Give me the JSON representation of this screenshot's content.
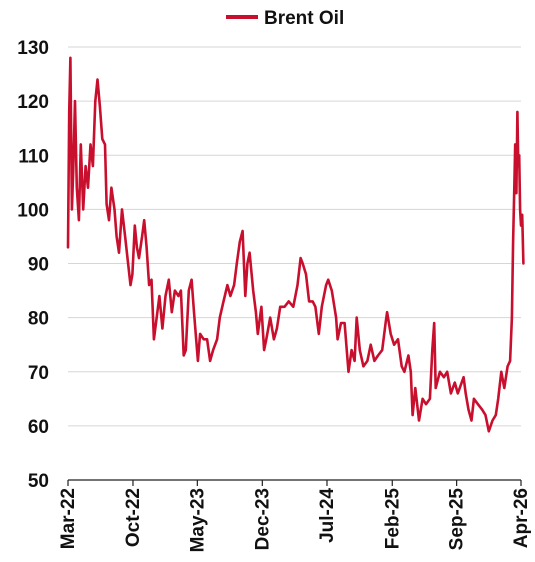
{
  "chart_data": {
    "type": "line",
    "title": "",
    "xlabel": "",
    "ylabel": "",
    "ylim": [
      50,
      130
    ],
    "yticks": [
      50,
      60,
      70,
      80,
      90,
      100,
      110,
      120,
      130
    ],
    "xtick_labels": [
      "Mar-22",
      "Oct-22",
      "May-23",
      "Dec-23",
      "Jul-24",
      "Feb-25",
      "Sep-25",
      "Apr-26"
    ],
    "grid": "horizontal",
    "legend": "top-center",
    "colors": {
      "series": "#c8102e"
    },
    "series": [
      {
        "name": "Brent Oil",
        "points": [
          [
            "2022-03-01",
            93
          ],
          [
            "2022-03-05",
            118
          ],
          [
            "2022-03-09",
            128
          ],
          [
            "2022-03-14",
            100
          ],
          [
            "2022-03-18",
            107
          ],
          [
            "2022-03-24",
            120
          ],
          [
            "2022-03-30",
            104
          ],
          [
            "2022-04-06",
            98
          ],
          [
            "2022-04-12",
            112
          ],
          [
            "2022-04-20",
            100
          ],
          [
            "2022-04-28",
            108
          ],
          [
            "2022-05-06",
            104
          ],
          [
            "2022-05-14",
            112
          ],
          [
            "2022-05-22",
            108
          ],
          [
            "2022-05-30",
            120
          ],
          [
            "2022-06-06",
            124
          ],
          [
            "2022-06-14",
            119
          ],
          [
            "2022-06-22",
            113
          ],
          [
            "2022-07-01",
            112
          ],
          [
            "2022-07-06",
            101
          ],
          [
            "2022-07-14",
            98
          ],
          [
            "2022-07-22",
            104
          ],
          [
            "2022-08-01",
            100
          ],
          [
            "2022-08-08",
            95
          ],
          [
            "2022-08-16",
            92
          ],
          [
            "2022-08-26",
            100
          ],
          [
            "2022-09-05",
            95
          ],
          [
            "2022-09-15",
            90
          ],
          [
            "2022-09-23",
            86
          ],
          [
            "2022-09-29",
            88
          ],
          [
            "2022-10-07",
            97
          ],
          [
            "2022-10-14",
            93
          ],
          [
            "2022-10-21",
            91
          ],
          [
            "2022-10-31",
            95
          ],
          [
            "2022-11-07",
            98
          ],
          [
            "2022-11-15",
            93
          ],
          [
            "2022-11-23",
            86
          ],
          [
            "2022-12-01",
            87
          ],
          [
            "2022-12-09",
            76
          ],
          [
            "2022-12-16",
            79
          ],
          [
            "2022-12-27",
            84
          ],
          [
            "2023-01-06",
            78
          ],
          [
            "2023-01-16",
            84
          ],
          [
            "2023-01-27",
            87
          ],
          [
            "2023-02-06",
            81
          ],
          [
            "2023-02-16",
            85
          ],
          [
            "2023-02-28",
            84
          ],
          [
            "2023-03-08",
            85
          ],
          [
            "2023-03-17",
            73
          ],
          [
            "2023-03-24",
            74
          ],
          [
            "2023-04-03",
            85
          ],
          [
            "2023-04-12",
            87
          ],
          [
            "2023-04-20",
            81
          ],
          [
            "2023-05-03",
            72
          ],
          [
            "2023-05-10",
            77
          ],
          [
            "2023-05-22",
            76
          ],
          [
            "2023-06-02",
            76
          ],
          [
            "2023-06-12",
            72
          ],
          [
            "2023-06-22",
            74
          ],
          [
            "2023-07-05",
            76
          ],
          [
            "2023-07-14",
            80
          ],
          [
            "2023-07-26",
            83
          ],
          [
            "2023-08-08",
            86
          ],
          [
            "2023-08-18",
            84
          ],
          [
            "2023-08-30",
            86
          ],
          [
            "2023-09-08",
            90
          ],
          [
            "2023-09-18",
            94
          ],
          [
            "2023-09-27",
            96
          ],
          [
            "2023-10-06",
            84
          ],
          [
            "2023-10-13",
            90
          ],
          [
            "2023-10-20",
            92
          ],
          [
            "2023-11-01",
            85
          ],
          [
            "2023-11-10",
            81
          ],
          [
            "2023-11-16",
            77
          ],
          [
            "2023-11-28",
            82
          ],
          [
            "2023-12-07",
            74
          ],
          [
            "2023-12-14",
            76
          ],
          [
            "2023-12-27",
            80
          ],
          [
            "2024-01-08",
            76
          ],
          [
            "2024-01-18",
            78
          ],
          [
            "2024-01-29",
            82
          ],
          [
            "2024-02-12",
            82
          ],
          [
            "2024-02-26",
            83
          ],
          [
            "2024-03-12",
            82
          ],
          [
            "2024-03-26",
            86
          ],
          [
            "2024-04-05",
            91
          ],
          [
            "2024-04-12",
            90
          ],
          [
            "2024-04-23",
            88
          ],
          [
            "2024-05-03",
            83
          ],
          [
            "2024-05-15",
            83
          ],
          [
            "2024-05-24",
            82
          ],
          [
            "2024-06-04",
            77
          ],
          [
            "2024-06-14",
            82
          ],
          [
            "2024-06-28",
            86
          ],
          [
            "2024-07-05",
            87
          ],
          [
            "2024-07-17",
            85
          ],
          [
            "2024-07-31",
            80
          ],
          [
            "2024-08-05",
            76
          ],
          [
            "2024-08-16",
            79
          ],
          [
            "2024-08-28",
            79
          ],
          [
            "2024-09-10",
            70
          ],
          [
            "2024-09-20",
            74
          ],
          [
            "2024-09-30",
            72
          ],
          [
            "2024-10-07",
            80
          ],
          [
            "2024-10-17",
            74
          ],
          [
            "2024-10-29",
            71
          ],
          [
            "2024-11-11",
            72
          ],
          [
            "2024-11-22",
            75
          ],
          [
            "2024-12-04",
            72
          ],
          [
            "2024-12-16",
            73
          ],
          [
            "2024-12-30",
            74
          ],
          [
            "2025-01-10",
            79
          ],
          [
            "2025-01-15",
            81
          ],
          [
            "2025-01-27",
            77
          ],
          [
            "2025-02-07",
            75
          ],
          [
            "2025-02-20",
            76
          ],
          [
            "2025-03-04",
            71
          ],
          [
            "2025-03-13",
            70
          ],
          [
            "2025-03-26",
            73
          ],
          [
            "2025-04-03",
            70
          ],
          [
            "2025-04-09",
            62
          ],
          [
            "2025-04-18",
            67
          ],
          [
            "2025-04-30",
            61
          ],
          [
            "2025-05-12",
            65
          ],
          [
            "2025-05-23",
            64
          ],
          [
            "2025-06-05",
            65
          ],
          [
            "2025-06-13",
            74
          ],
          [
            "2025-06-19",
            79
          ],
          [
            "2025-06-24",
            67
          ],
          [
            "2025-07-08",
            70
          ],
          [
            "2025-07-21",
            69
          ],
          [
            "2025-08-01",
            70
          ],
          [
            "2025-08-13",
            66
          ],
          [
            "2025-08-26",
            68
          ],
          [
            "2025-09-05",
            66
          ],
          [
            "2025-09-24",
            69
          ],
          [
            "2025-10-01",
            66
          ],
          [
            "2025-10-10",
            63
          ],
          [
            "2025-10-20",
            61
          ],
          [
            "2025-10-28",
            65
          ],
          [
            "2025-11-10",
            64
          ],
          [
            "2025-11-24",
            63
          ],
          [
            "2025-12-05",
            62
          ],
          [
            "2025-12-16",
            59
          ],
          [
            "2025-12-28",
            61
          ],
          [
            "2026-01-08",
            62
          ],
          [
            "2026-01-16",
            65
          ],
          [
            "2026-01-26",
            70
          ],
          [
            "2026-02-05",
            67
          ],
          [
            "2026-02-16",
            71
          ],
          [
            "2026-02-24",
            72
          ],
          [
            "2026-03-02",
            80
          ],
          [
            "2026-03-06",
            94
          ],
          [
            "2026-03-10",
            104
          ],
          [
            "2026-03-13",
            112
          ],
          [
            "2026-03-17",
            103
          ],
          [
            "2026-03-20",
            118
          ],
          [
            "2026-03-23",
            108
          ],
          [
            "2026-03-26",
            110
          ],
          [
            "2026-03-29",
            100
          ],
          [
            "2026-04-01",
            97
          ],
          [
            "2026-04-05",
            99
          ],
          [
            "2026-04-09",
            90
          ]
        ]
      }
    ]
  }
}
